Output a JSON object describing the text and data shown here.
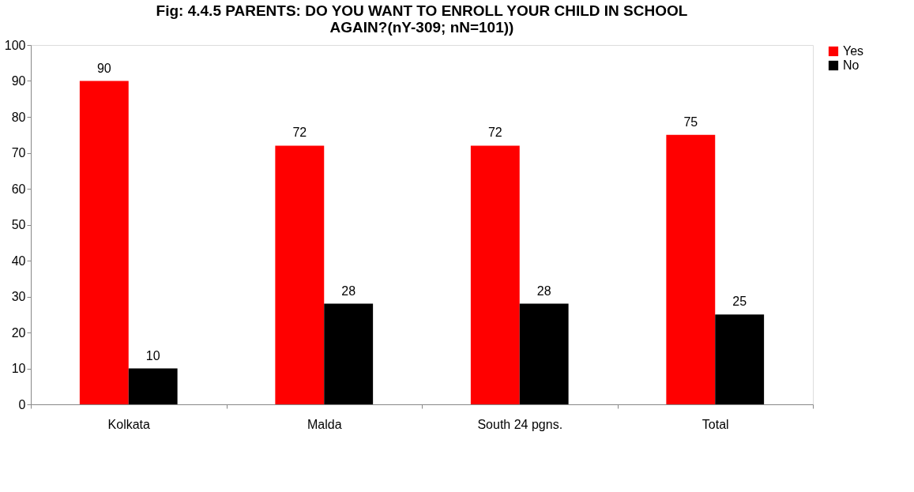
{
  "chart_data": {
    "type": "bar",
    "title": "Fig: 4.4.5 PARENTS: DO YOU WANT TO ENROLL YOUR CHILD IN SCHOOL AGAIN?(nY-309; nN=101))",
    "categories": [
      "Kolkata",
      "Malda",
      "South 24 pgns.",
      "Total"
    ],
    "series": [
      {
        "name": "Yes",
        "color": "#ff0000",
        "values": [
          90,
          72,
          72,
          75
        ]
      },
      {
        "name": "No",
        "color": "#000000",
        "values": [
          10,
          28,
          28,
          25
        ]
      }
    ],
    "ylim": [
      0,
      100
    ],
    "yticks": [
      0,
      10,
      20,
      30,
      40,
      50,
      60,
      70,
      80,
      90,
      100
    ],
    "grid": false,
    "legend": "right",
    "data_labels": true
  }
}
